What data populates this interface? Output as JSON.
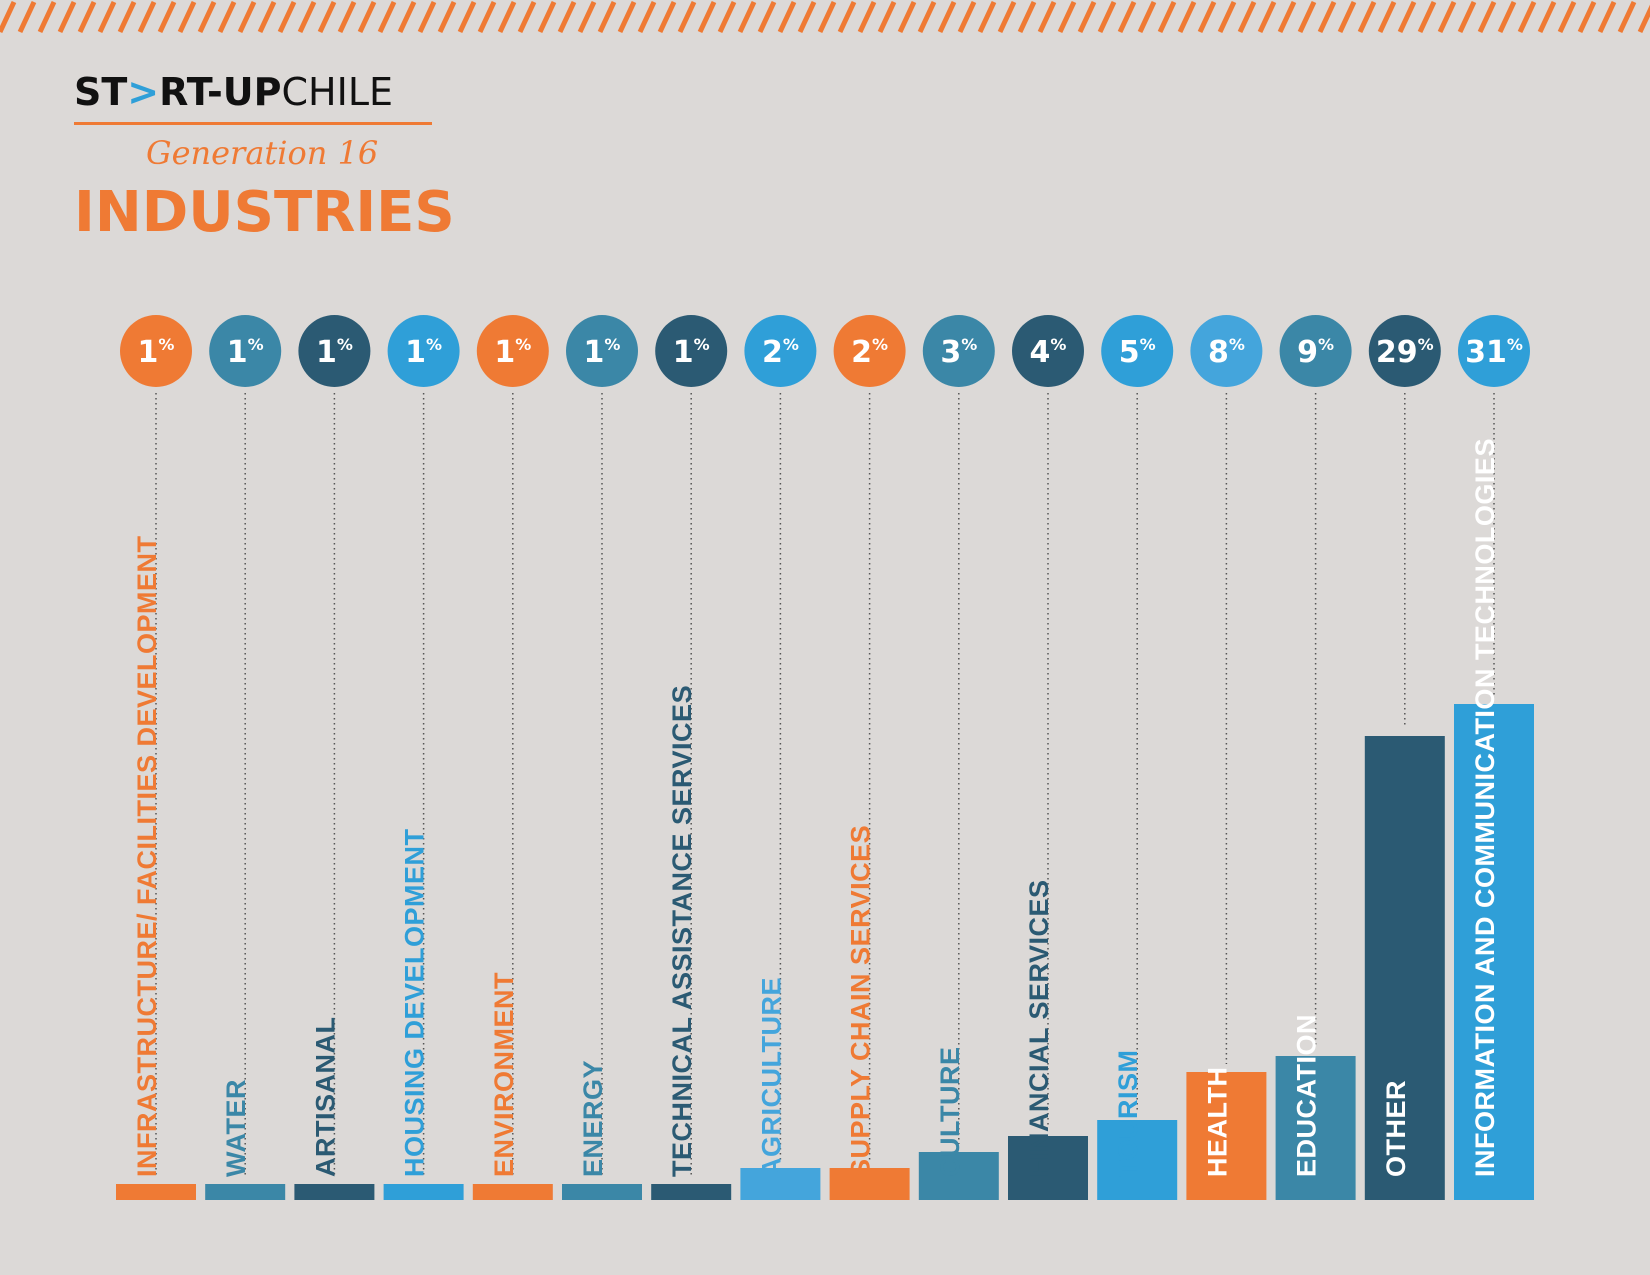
{
  "header": {
    "logo_start": "ST",
    "logo_arrow": ">",
    "logo_mid": "RT-UP",
    "logo_end": "CHILE",
    "generation": "Generation 16",
    "title": "INDUSTRIES"
  },
  "colors": {
    "background": "#dcd9d7",
    "orange": "#ef7a34",
    "teal": "#3b87a7",
    "navy": "#2b5a73",
    "blue": "#2f9fd8",
    "light_blue": "#44a5dc"
  },
  "chart_data": {
    "type": "bar",
    "unit": "%",
    "categories": [
      "INFRASTRUCTURE/ FACILITIES DEVELOPMENT",
      "WATER",
      "ARTISANAL",
      "HOUSING DEVELOPMENT",
      "ENVIRONMENT",
      "ENERGY",
      "TECHNICAL ASSISTANCE SERVICES",
      "AGRICULTURE",
      "SUPPLY CHAIN SERVICES",
      "CULTURE",
      "FINANCIAL SERVICES",
      "TOURISM",
      "HEALTH",
      "EDUCATION",
      "OTHER",
      "INFORMATION AND COMMUNICATION TECHNOLOGIES"
    ],
    "values": [
      1,
      1,
      1,
      1,
      1,
      1,
      1,
      2,
      2,
      3,
      4,
      5,
      8,
      9,
      29,
      31
    ],
    "colors": [
      "#ef7a34",
      "#3b87a7",
      "#2b5a73",
      "#2f9fd8",
      "#ef7a34",
      "#3b87a7",
      "#2b5a73",
      "#44a5dc",
      "#ef7a34",
      "#3b87a7",
      "#2b5a73",
      "#2f9fd8",
      "#ef7a34",
      "#3b87a7",
      "#2b5a73",
      "#2f9fd8"
    ],
    "badge_colors": [
      "#ef7a34",
      "#3b87a7",
      "#2b5a73",
      "#2f9fd8",
      "#ef7a34",
      "#3b87a7",
      "#2b5a73",
      "#2f9fd8",
      "#ef7a34",
      "#3b87a7",
      "#2b5a73",
      "#2f9fd8",
      "#44a5dc",
      "#3b87a7",
      "#2b5a73",
      "#2f9fd8"
    ],
    "label_colors": [
      "#ef7a34",
      "#3b87a7",
      "#2b5a73",
      "#2f9fd8",
      "#ef7a34",
      "#3b87a7",
      "#2b5a73",
      "#44a5dc",
      "#ef7a34",
      "#3b87a7",
      "#2b5a73",
      "#2f9fd8",
      "#ffffff",
      "#ffffff",
      "#ffffff",
      "#ffffff"
    ],
    "ylim": [
      0,
      31
    ],
    "xlabel": "",
    "ylabel": "",
    "grid": false,
    "legend": false
  }
}
